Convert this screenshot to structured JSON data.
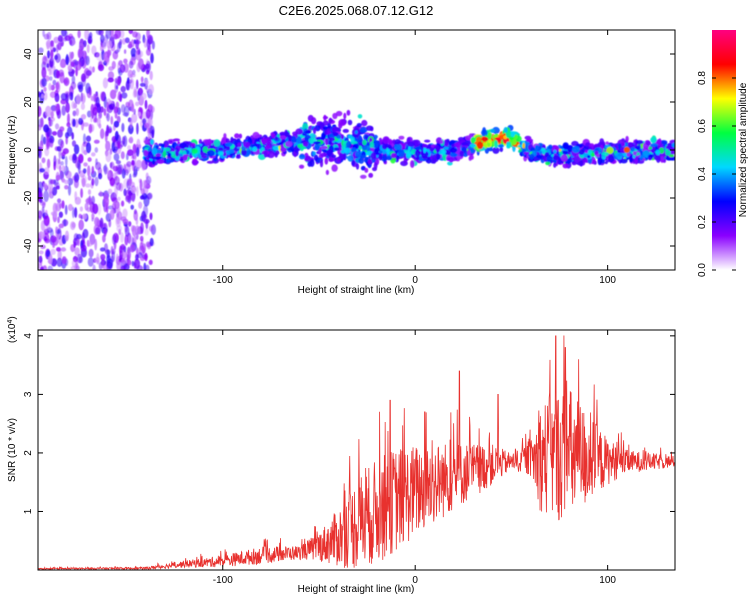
{
  "title": "C2E6.2025.068.07.12.G12",
  "chart_data": [
    {
      "type": "heatmap",
      "xlabel": "Height of straight line (km)",
      "ylabel": "Frequency (Hz)",
      "xlim": [
        -196,
        135
      ],
      "ylim": [
        -50,
        50
      ],
      "xticks": [
        -100,
        0,
        100
      ],
      "yticks": [
        -40,
        -20,
        0,
        20,
        40
      ],
      "colorbar": {
        "label": "Normalized spectral amplitude",
        "ticks": [
          "0.0",
          "0.2",
          "0.4",
          "0.6",
          "0.8"
        ],
        "range": [
          0,
          1
        ],
        "colors": [
          "#ffffff",
          "#8a00ff",
          "#0000ff",
          "#00d8ff",
          "#00ff40",
          "#ffff00",
          "#ff0000",
          "#ff0080"
        ]
      },
      "band_center_freq": {
        "x": [
          -140,
          -120,
          -100,
          -80,
          -60,
          -40,
          -20,
          0,
          20,
          30,
          40,
          50,
          60,
          80,
          100,
          135
        ],
        "y": [
          -2,
          -1,
          0,
          2,
          3,
          4,
          0,
          -1,
          0,
          2,
          5,
          5,
          -1,
          -2,
          -1,
          0
        ]
      },
      "noise_region_x": [
        -196,
        -136
      ]
    },
    {
      "type": "line",
      "xlabel": "Height of straight line (km)",
      "ylabel": "SNR (10 * v/v)",
      "yscale_label": "(x10^4)",
      "xlim": [
        -196,
        135
      ],
      "ylim": [
        0,
        4.1
      ],
      "xticks": [
        -100,
        0,
        100
      ],
      "yticks": [
        1,
        2,
        3,
        4
      ],
      "color": "#e8312e",
      "envelope": {
        "x": [
          -196,
          -140,
          -120,
          -100,
          -80,
          -60,
          -50,
          -40,
          -30,
          -20,
          -10,
          0,
          20,
          40,
          50,
          60,
          65,
          70,
          80,
          90,
          100,
          110,
          135
        ],
        "mean": [
          0.02,
          0.03,
          0.1,
          0.15,
          0.25,
          0.3,
          0.4,
          0.55,
          0.8,
          1.0,
          1.2,
          1.35,
          1.6,
          1.8,
          1.85,
          1.9,
          1.9,
          1.95,
          1.95,
          1.9,
          1.85,
          1.85,
          1.85
        ],
        "spread": [
          0.01,
          0.02,
          0.06,
          0.1,
          0.15,
          0.12,
          0.25,
          0.5,
          0.8,
          0.9,
          0.9,
          0.8,
          0.6,
          0.35,
          0.15,
          0.3,
          0.9,
          1.1,
          1.2,
          0.8,
          0.4,
          0.2,
          0.1
        ]
      },
      "peaks": [
        {
          "x": -13,
          "y": 2.9
        },
        {
          "x": 5,
          "y": 2.7
        },
        {
          "x": 23,
          "y": 3.4
        },
        {
          "x": 43,
          "y": 3.0
        },
        {
          "x": 73,
          "y": 4.0
        },
        {
          "x": 78,
          "y": 3.8
        }
      ]
    }
  ]
}
